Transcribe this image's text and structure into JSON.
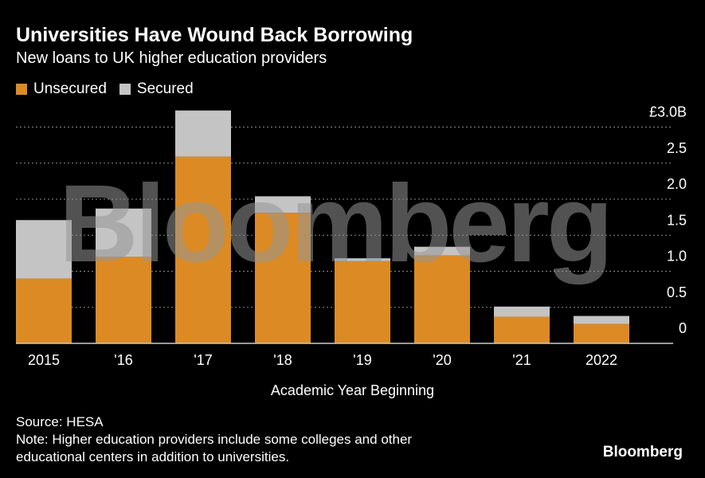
{
  "title": "Universities Have Wound Back Borrowing",
  "subtitle": "New loans to UK higher education providers",
  "source": "Source: HESA",
  "note_line1": "Note: Higher education providers include some colleges and other",
  "note_line2": "educational centers in addition to universities.",
  "brand": "Bloomberg",
  "watermark": "Bloomberg",
  "chart_data": {
    "type": "bar",
    "stacked": true,
    "categories": [
      "2015",
      "'16",
      "'17",
      "'18",
      "'19",
      "'20",
      "'21",
      "2022"
    ],
    "series": [
      {
        "name": "Unsecured",
        "color": "#dc8a23",
        "values": [
          0.9,
          1.2,
          2.59,
          1.81,
          1.14,
          1.22,
          0.37,
          0.27
        ]
      },
      {
        "name": "Secured",
        "color": "#c4c4c4",
        "values": [
          0.81,
          0.67,
          0.64,
          0.23,
          0.04,
          0.12,
          0.14,
          0.11
        ]
      }
    ],
    "xlabel": "Academic Year Beginning",
    "ylabel": "",
    "ylim": [
      0,
      3.0
    ],
    "yticks": [
      0,
      0.5,
      1.0,
      1.5,
      2.0,
      2.5,
      3.0
    ],
    "ytick_labels": [
      "0",
      "0.5",
      "1.0",
      "1.5",
      "2.0",
      "2.5",
      "£3.0B"
    ],
    "grid": true,
    "legend_position": "top-left",
    "y_axis_position": "right"
  }
}
